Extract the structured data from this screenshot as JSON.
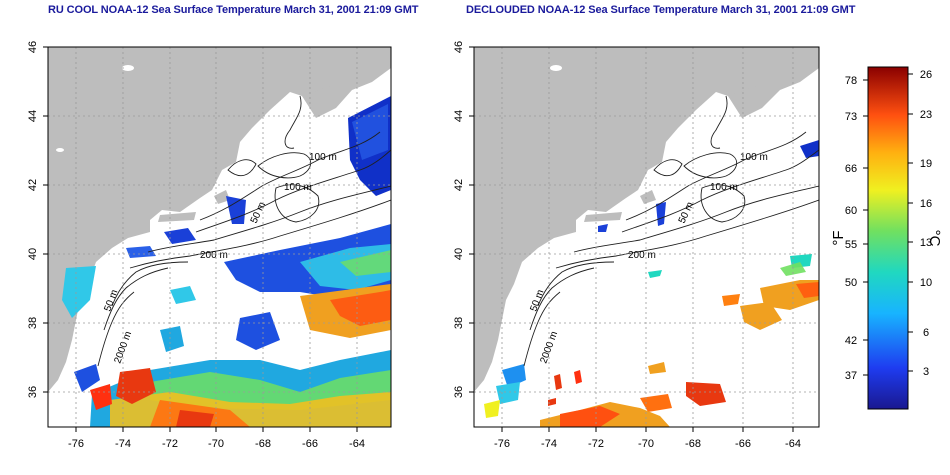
{
  "titles": {
    "left": "RU COOL NOAA-12 Sea Surface Temperature March 31, 2001 21:09 GMT",
    "right": "DECLOUDED NOAA-12 Sea Surface Temperature March 31, 2001 21:09 GMT"
  },
  "axes": {
    "x_ticks": [
      "-76",
      "-74",
      "-72",
      "-70",
      "-68",
      "-66",
      "-64"
    ],
    "y_ticks": [
      "36",
      "38",
      "40",
      "42",
      "44",
      "46"
    ]
  },
  "contour_labels": {
    "left": [
      "100 m",
      "100 m",
      "50 m",
      "200 m",
      "50 m",
      "2000 m"
    ],
    "right": [
      "100 m",
      "100 m",
      "50 m",
      "200 m",
      "50 m",
      "2000 m"
    ]
  },
  "colorbar": {
    "fahrenheit_unit": "°F",
    "celsius_unit": "°C",
    "fahrenheit_ticks": [
      "78",
      "73",
      "66",
      "60",
      "55",
      "50",
      "42",
      "37"
    ],
    "celsius_ticks": [
      "26",
      "23",
      "19",
      "16",
      "13",
      "10",
      "6",
      "3"
    ]
  },
  "colors": {
    "land": "#bdbdbd",
    "ocean_cloud": "#ffffff",
    "title": "#1a1a9c",
    "cold": "#1030c8",
    "warm": "#d83010"
  }
}
